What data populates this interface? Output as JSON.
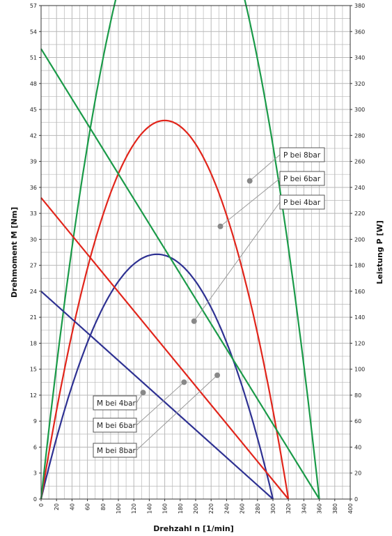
{
  "chart_data": {
    "type": "line",
    "xlabel": "Drehzahl n [1/min]",
    "ylabel_left": "Drehmoment M [Nm]",
    "ylabel_right": "Leistung P [W]",
    "x_ticks": [
      0,
      20,
      40,
      60,
      80,
      100,
      120,
      140,
      160,
      180,
      200,
      220,
      240,
      260,
      280,
      300,
      320,
      340,
      360,
      380,
      400
    ],
    "y_left_ticks": [
      0,
      3,
      6,
      9,
      12,
      15,
      18,
      21,
      24,
      27,
      30,
      33,
      36,
      39,
      42,
      45,
      48,
      51,
      54,
      57
    ],
    "y_right_ticks": [
      0,
      20,
      40,
      60,
      80,
      100,
      120,
      140,
      160,
      180,
      200,
      220,
      240,
      260,
      280,
      300,
      320,
      340,
      360,
      380
    ],
    "xlim": [
      0,
      400
    ],
    "ylim_left": [
      0,
      57
    ],
    "ylim_right": [
      0,
      380
    ],
    "grid": true,
    "torque_series": [
      {
        "name": "M bei 4bar",
        "color": "#2e3192",
        "points": [
          [
            0,
            24
          ],
          [
            300,
            0
          ]
        ],
        "marker": [
          132,
          12.3
        ]
      },
      {
        "name": "M bei 6bar",
        "color": "#e1251b",
        "points": [
          [
            0,
            34.8
          ],
          [
            320,
            0
          ]
        ],
        "marker": [
          185,
          13.5
        ]
      },
      {
        "name": "M bei 8bar",
        "color": "#1a9a48",
        "points": [
          [
            0,
            52
          ],
          [
            360,
            0
          ]
        ],
        "marker": [
          228,
          14.3
        ]
      }
    ],
    "power_series": [
      {
        "name": "P bei 4bar",
        "color": "#2e3192",
        "n_max": 300,
        "m0": 24,
        "marker": [
          198,
          137
        ]
      },
      {
        "name": "P bei 6bar",
        "color": "#e1251b",
        "n_max": 320,
        "m0": 34.8,
        "marker": [
          232,
          210
        ]
      },
      {
        "name": "P bei 8bar",
        "color": "#1a9a48",
        "n_max": 360,
        "m0": 52,
        "marker": [
          270,
          245
        ]
      }
    ]
  }
}
